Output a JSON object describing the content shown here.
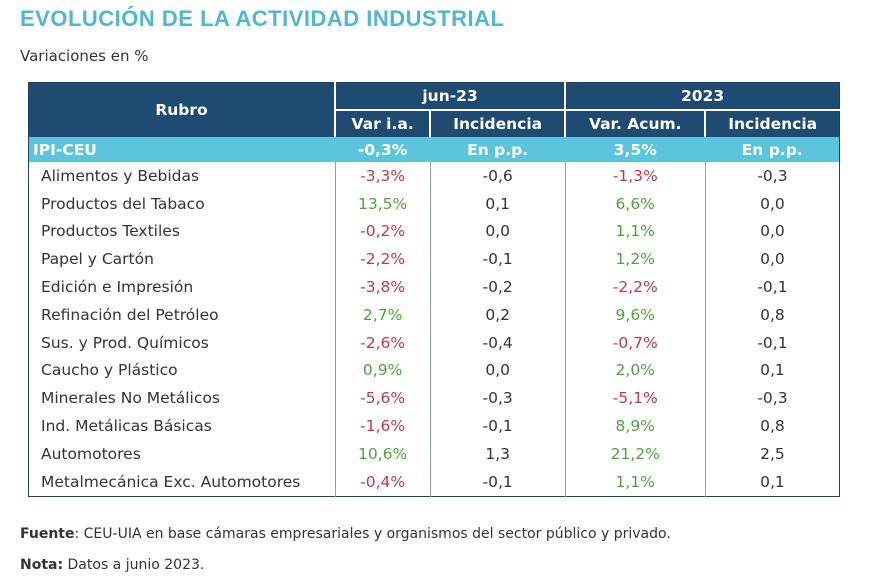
{
  "title": "EVOLUCIÓN DE LA ACTIVIDAD INDUSTRIAL",
  "subtitle": "Variaciones en %",
  "table": {
    "col_rubro": "Rubro",
    "group1": "jun-23",
    "group2": "2023",
    "sub1": "Var i.a.",
    "sub2": "Incidencia",
    "sub3": "Var. Acum.",
    "sub4": "Incidencia",
    "ipi": {
      "name": "IPI-CEU",
      "v1": "-0,3%",
      "v2": "En p.p.",
      "v3": "3,5%",
      "v4": "En p.p."
    },
    "rows": [
      {
        "name": "Alimentos y Bebidas",
        "v1": "-3,3%",
        "v2": "-0,6",
        "v3": "-1,3%",
        "v4": "-0,3"
      },
      {
        "name": "Productos del Tabaco",
        "v1": "13,5%",
        "v2": "0,1",
        "v3": "6,6%",
        "v4": "0,0"
      },
      {
        "name": "Productos Textiles",
        "v1": "-0,2%",
        "v2": "0,0",
        "v3": "1,1%",
        "v4": "0,0"
      },
      {
        "name": "Papel y Cartón",
        "v1": "-2,2%",
        "v2": "-0,1",
        "v3": "1,2%",
        "v4": "0,0"
      },
      {
        "name": "Edición e Impresión",
        "v1": "-3,8%",
        "v2": "-0,2",
        "v3": "-2,2%",
        "v4": "-0,1"
      },
      {
        "name": "Refinación del Petróleo",
        "v1": "2,7%",
        "v2": "0,2",
        "v3": "9,6%",
        "v4": "0,8"
      },
      {
        "name": "Sus. y Prod. Químicos",
        "v1": "-2,6%",
        "v2": "-0,4",
        "v3": "-0,7%",
        "v4": "-0,1"
      },
      {
        "name": "Caucho y Plástico",
        "v1": "0,9%",
        "v2": "0,0",
        "v3": "2,0%",
        "v4": "0,1"
      },
      {
        "name": "Minerales No Metálicos",
        "v1": "-5,6%",
        "v2": "-0,3",
        "v3": "-5,1%",
        "v4": "-0,3"
      },
      {
        "name": "Ind. Metálicas Básicas",
        "v1": "-1,6%",
        "v2": "-0,1",
        "v3": "8,9%",
        "v4": "0,8"
      },
      {
        "name": "Automotores",
        "v1": "10,6%",
        "v2": "1,3",
        "v3": "21,2%",
        "v4": "2,5"
      },
      {
        "name": "Metalmecánica Exc. Automotores",
        "v1": "-0,4%",
        "v2": "-0,1",
        "v3": "1,1%",
        "v4": "0,1"
      }
    ]
  },
  "footnotes": {
    "fuente_label": "Fuente",
    "fuente_text": ": CEU-UIA en base cámaras empresariales y organismos del sector público y privado.",
    "nota_label": "Nota:",
    "nota_text": " Datos a junio 2023."
  },
  "colors": {
    "title": "#4fb6d3",
    "header_bg": "#1f4a72",
    "ipi_bg": "#5cc4dc",
    "negative": "#c0384b",
    "positive": "#4fa33f"
  }
}
